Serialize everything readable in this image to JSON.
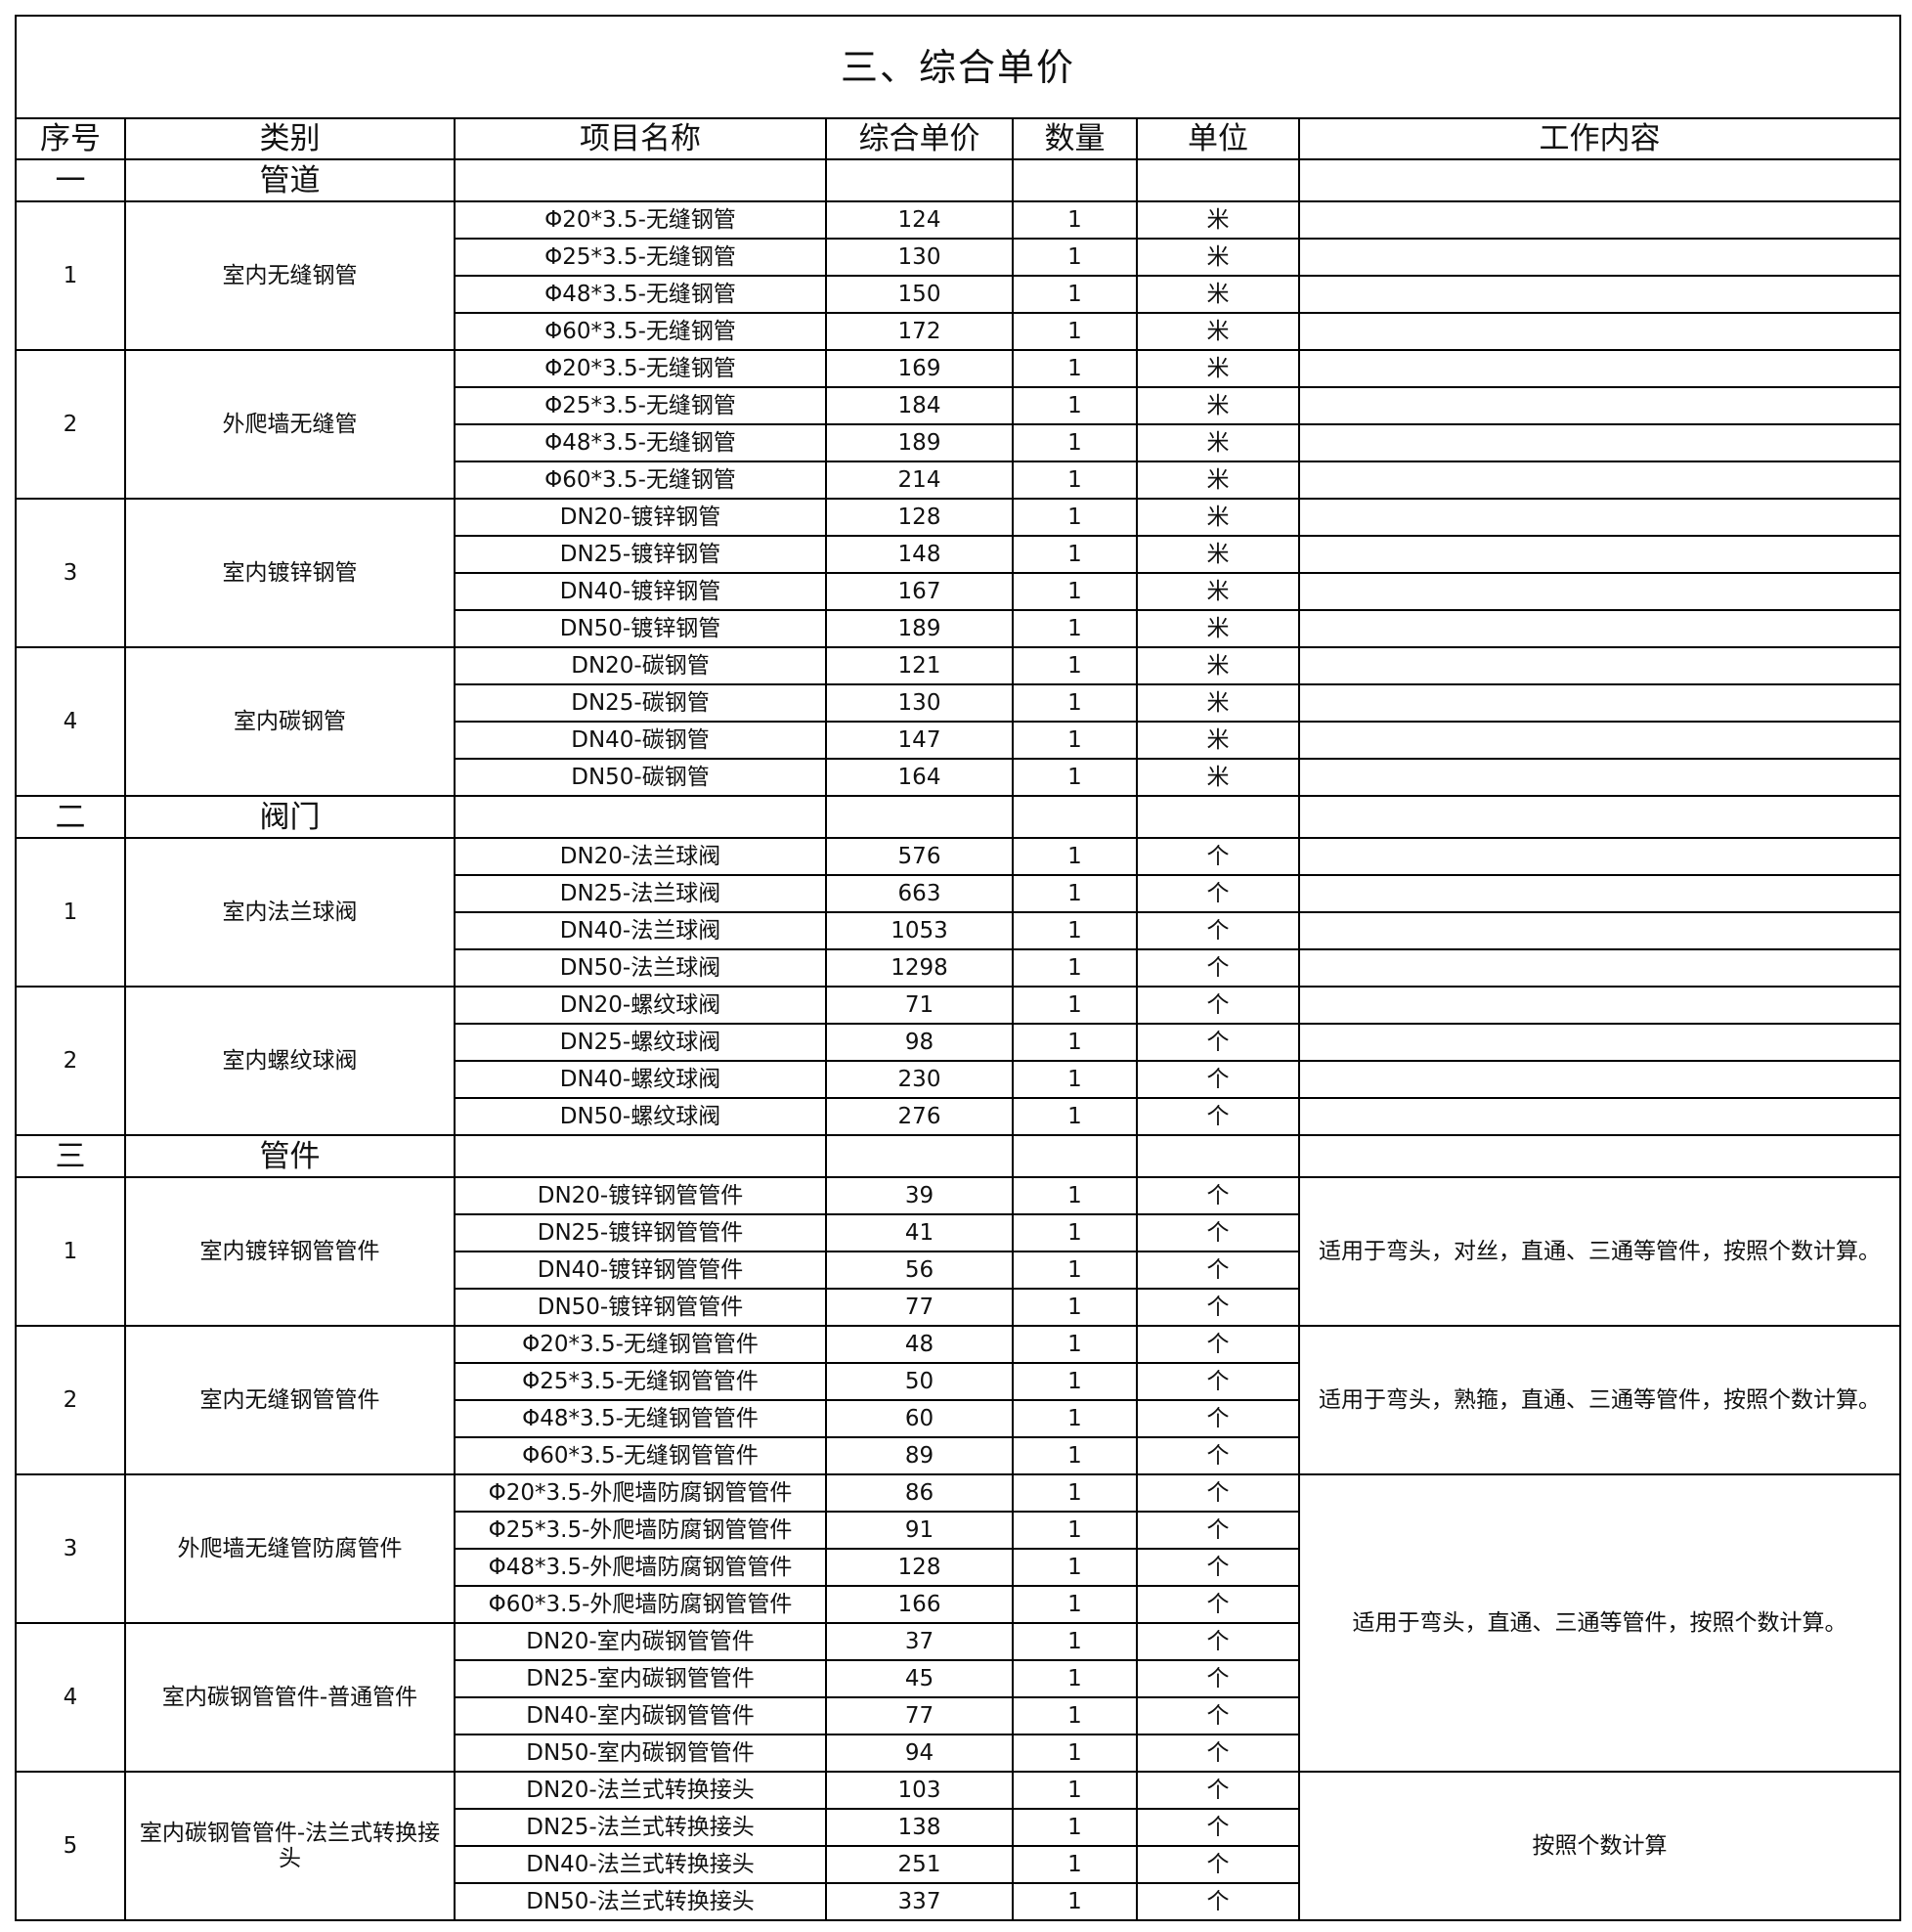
{
  "title": "三、综合单价",
  "headers": [
    "序号",
    "类别",
    "项目名称",
    "综合单价",
    "数量",
    "单位",
    "工作内容"
  ],
  "sections": [
    {
      "num": "一",
      "name": "管道",
      "groups": [
        {
          "num": "1",
          "category": "室内无缝钢管",
          "items": [
            {
              "name": "Φ20*3.5-无缝钢管",
              "price": "124",
              "qty": "1",
              "unit": "米"
            },
            {
              "name": "Φ25*3.5-无缝钢管",
              "price": "130",
              "qty": "1",
              "unit": "米"
            },
            {
              "name": "Φ48*3.5-无缝钢管",
              "price": "150",
              "qty": "1",
              "unit": "米"
            },
            {
              "name": "Φ60*3.5-无缝钢管",
              "price": "172",
              "qty": "1",
              "unit": "米"
            }
          ]
        },
        {
          "num": "2",
          "category": "外爬墙无缝管",
          "items": [
            {
              "name": "Φ20*3.5-无缝钢管",
              "price": "169",
              "qty": "1",
              "unit": "米"
            },
            {
              "name": "Φ25*3.5-无缝钢管",
              "price": "184",
              "qty": "1",
              "unit": "米"
            },
            {
              "name": "Φ48*3.5-无缝钢管",
              "price": "189",
              "qty": "1",
              "unit": "米"
            },
            {
              "name": "Φ60*3.5-无缝钢管",
              "price": "214",
              "qty": "1",
              "unit": "米"
            }
          ]
        },
        {
          "num": "3",
          "category": "室内镀锌钢管",
          "items": [
            {
              "name": "DN20-镀锌钢管",
              "price": "128",
              "qty": "1",
              "unit": "米"
            },
            {
              "name": "DN25-镀锌钢管",
              "price": "148",
              "qty": "1",
              "unit": "米"
            },
            {
              "name": "DN40-镀锌钢管",
              "price": "167",
              "qty": "1",
              "unit": "米"
            },
            {
              "name": "DN50-镀锌钢管",
              "price": "189",
              "qty": "1",
              "unit": "米"
            }
          ]
        },
        {
          "num": "4",
          "category": "室内碳钢管",
          "items": [
            {
              "name": "DN20-碳钢管",
              "price": "121",
              "qty": "1",
              "unit": "米"
            },
            {
              "name": "DN25-碳钢管",
              "price": "130",
              "qty": "1",
              "unit": "米"
            },
            {
              "name": "DN40-碳钢管",
              "price": "147",
              "qty": "1",
              "unit": "米"
            },
            {
              "name": "DN50-碳钢管",
              "price": "164",
              "qty": "1",
              "unit": "米"
            }
          ]
        }
      ],
      "notes": []
    },
    {
      "num": "二",
      "name": "阀门",
      "groups": [
        {
          "num": "1",
          "category": "室内法兰球阀",
          "items": [
            {
              "name": "DN20-法兰球阀",
              "price": "576",
              "qty": "1",
              "unit": "个"
            },
            {
              "name": "DN25-法兰球阀",
              "price": "663",
              "qty": "1",
              "unit": "个"
            },
            {
              "name": "DN40-法兰球阀",
              "price": "1053",
              "qty": "1",
              "unit": "个"
            },
            {
              "name": "DN50-法兰球阀",
              "price": "1298",
              "qty": "1",
              "unit": "个"
            }
          ]
        },
        {
          "num": "2",
          "category": "室内螺纹球阀",
          "items": [
            {
              "name": "DN20-螺纹球阀",
              "price": "71",
              "qty": "1",
              "unit": "个"
            },
            {
              "name": "DN25-螺纹球阀",
              "price": "98",
              "qty": "1",
              "unit": "个"
            },
            {
              "name": "DN40-螺纹球阀",
              "price": "230",
              "qty": "1",
              "unit": "个"
            },
            {
              "name": "DN50-螺纹球阀",
              "price": "276",
              "qty": "1",
              "unit": "个"
            }
          ]
        }
      ],
      "notes": []
    },
    {
      "num": "三",
      "name": "管件",
      "groups": [
        {
          "num": "1",
          "category": "室内镀锌钢管管件",
          "items": [
            {
              "name": "DN20-镀锌钢管管件",
              "price": "39",
              "qty": "1",
              "unit": "个"
            },
            {
              "name": "DN25-镀锌钢管管件",
              "price": "41",
              "qty": "1",
              "unit": "个"
            },
            {
              "name": "DN40-镀锌钢管管件",
              "price": "56",
              "qty": "1",
              "unit": "个"
            },
            {
              "name": "DN50-镀锌钢管管件",
              "price": "77",
              "qty": "1",
              "unit": "个"
            }
          ]
        },
        {
          "num": "2",
          "category": "室内无缝钢管管件",
          "items": [
            {
              "name": "Φ20*3.5-无缝钢管管件",
              "price": "48",
              "qty": "1",
              "unit": "个"
            },
            {
              "name": "Φ25*3.5-无缝钢管管件",
              "price": "50",
              "qty": "1",
              "unit": "个"
            },
            {
              "name": "Φ48*3.5-无缝钢管管件",
              "price": "60",
              "qty": "1",
              "unit": "个"
            },
            {
              "name": "Φ60*3.5-无缝钢管管件",
              "price": "89",
              "qty": "1",
              "unit": "个"
            }
          ]
        },
        {
          "num": "3",
          "category": "外爬墙无缝管防腐管件",
          "items": [
            {
              "name": "Φ20*3.5-外爬墙防腐钢管管件",
              "price": "86",
              "qty": "1",
              "unit": "个"
            },
            {
              "name": "Φ25*3.5-外爬墙防腐钢管管件",
              "price": "91",
              "qty": "1",
              "unit": "个"
            },
            {
              "name": "Φ48*3.5-外爬墙防腐钢管管件",
              "price": "128",
              "qty": "1",
              "unit": "个"
            },
            {
              "name": "Φ60*3.5-外爬墙防腐钢管管件",
              "price": "166",
              "qty": "1",
              "unit": "个"
            }
          ]
        },
        {
          "num": "4",
          "category": "室内碳钢管管件-普通管件",
          "items": [
            {
              "name": "DN20-室内碳钢管管件",
              "price": "37",
              "qty": "1",
              "unit": "个"
            },
            {
              "name": "DN25-室内碳钢管管件",
              "price": "45",
              "qty": "1",
              "unit": "个"
            },
            {
              "name": "DN40-室内碳钢管管件",
              "price": "77",
              "qty": "1",
              "unit": "个"
            },
            {
              "name": "DN50-室内碳钢管管件",
              "price": "94",
              "qty": "1",
              "unit": "个"
            }
          ]
        },
        {
          "num": "5",
          "category": "室内碳钢管管件-法兰式转换接头",
          "items": [
            {
              "name": "DN20-法兰式转换接头",
              "price": "103",
              "qty": "1",
              "unit": "个"
            },
            {
              "name": "DN25-法兰式转换接头",
              "price": "138",
              "qty": "1",
              "unit": "个"
            },
            {
              "name": "DN40-法兰式转换接头",
              "price": "251",
              "qty": "1",
              "unit": "个"
            },
            {
              "name": "DN50-法兰式转换接头",
              "price": "337",
              "qty": "1",
              "unit": "个"
            }
          ]
        }
      ],
      "notes": [
        {
          "text": "适用于弯头，对丝，直通、三通等管件，按照个数计算。",
          "groups": [
            "1"
          ]
        },
        {
          "text": "适用于弯头，熟箍，直通、三通等管件，按照个数计算。",
          "groups": [
            "2"
          ]
        },
        {
          "text": "适用于弯头，直通、三通等管件，按照个数计算。",
          "groups": [
            "3",
            "4"
          ]
        },
        {
          "text": "按照个数计算",
          "groups": [
            "5"
          ]
        }
      ]
    }
  ]
}
